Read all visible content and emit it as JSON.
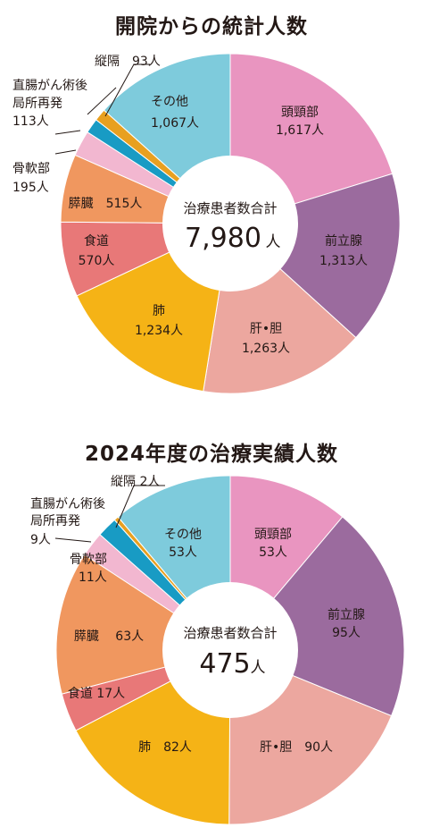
{
  "chart_data": [
    {
      "type": "pie",
      "title": "開院からの統計人数",
      "center_label": "治療患者数合計",
      "total": "7,980",
      "total_unit": "人",
      "unit": "人",
      "slices": [
        {
          "name": "頭頸部",
          "value": 1617,
          "value_text": "1,617",
          "color": "#e995c0"
        },
        {
          "name": "前立腺",
          "value": 1313,
          "value_text": "1,313",
          "color": "#9b6b9e"
        },
        {
          "name": "肝•胆",
          "value": 1263,
          "value_text": "1,263",
          "color": "#eca79f"
        },
        {
          "name": "肺",
          "value": 1234,
          "value_text": "1,234",
          "color": "#f5b316"
        },
        {
          "name": "食道",
          "value": 570,
          "value_text": "570",
          "color": "#e87878"
        },
        {
          "name": "膵臓",
          "value": 515,
          "value_text": "515",
          "color": "#f0975f"
        },
        {
          "name": "骨軟部",
          "value": 195,
          "value_text": "195",
          "color": "#f2b7d0"
        },
        {
          "name": "直腸がん術後局所再発",
          "value": 113,
          "value_text": "113",
          "color": "#189bc4"
        },
        {
          "name": "縦隔",
          "value": 93,
          "value_text": "93",
          "color": "#e8a020"
        },
        {
          "name": "その他",
          "value": 1067,
          "value_text": "1,067",
          "color": "#7ecbdc"
        }
      ]
    },
    {
      "type": "pie",
      "title": "2024年度の治療実績人数",
      "center_label": "治療患者数合計",
      "total": "475",
      "total_unit": "人",
      "unit": "人",
      "slices": [
        {
          "name": "頭頸部",
          "value": 53,
          "value_text": "53",
          "color": "#e995c0"
        },
        {
          "name": "前立腺",
          "value": 95,
          "value_text": "95",
          "color": "#9b6b9e"
        },
        {
          "name": "肝•胆",
          "value": 90,
          "value_text": "90",
          "color": "#eca79f"
        },
        {
          "name": "肺",
          "value": 82,
          "value_text": "82",
          "color": "#f5b316"
        },
        {
          "name": "食道",
          "value": 17,
          "value_text": "17",
          "color": "#e87878"
        },
        {
          "name": "膵臓",
          "value": 63,
          "value_text": "63",
          "color": "#f0975f"
        },
        {
          "name": "骨軟部",
          "value": 11,
          "value_text": "11",
          "color": "#f2b7d0"
        },
        {
          "name": "直腸がん術後局所再発",
          "value": 9,
          "value_text": "9",
          "color": "#189bc4"
        },
        {
          "name": "縦隔",
          "value": 2,
          "value_text": "2",
          "color": "#e8a020"
        },
        {
          "name": "その他",
          "value": 53,
          "value_text": "53",
          "color": "#7ecbdc"
        }
      ]
    }
  ],
  "labels": {
    "c1_head": "頭頸部",
    "c1_head_v": "1,617人",
    "c1_prostate": "前立腺",
    "c1_prostate_v": "1,313人",
    "c1_liver": "肝•胆",
    "c1_liver_v": "1,263人",
    "c1_lung": "肺",
    "c1_lung_v": "1,234人",
    "c1_esoph": "食道",
    "c1_esoph_v": "570人",
    "c1_pancreas": "膵臓　515人",
    "c1_bone": "骨軟部",
    "c1_bone_v": "195人",
    "c1_rectal_1": "直腸がん術後",
    "c1_rectal_2": "局所再発",
    "c1_rectal_v": "113人",
    "c1_mediast": "縦隔　93人",
    "c1_other": "その他",
    "c1_other_v": "1,067人",
    "c2_head": "頭頸部",
    "c2_head_v": "53人",
    "c2_prostate": "前立腺",
    "c2_prostate_v": "95人",
    "c2_liver": "肝•胆　90人",
    "c2_lung": "肺　82人",
    "c2_esoph": "食道 17人",
    "c2_pancreas": "膵臓　 63人",
    "c2_bone": "骨軟部",
    "c2_bone_v": "11人",
    "c2_rectal_1": "直腸がん術後",
    "c2_rectal_2": "局所再発",
    "c2_rectal_v": "9人",
    "c2_mediast": "縦隔  2人",
    "c2_other": "その他",
    "c2_other_v": "53人"
  }
}
